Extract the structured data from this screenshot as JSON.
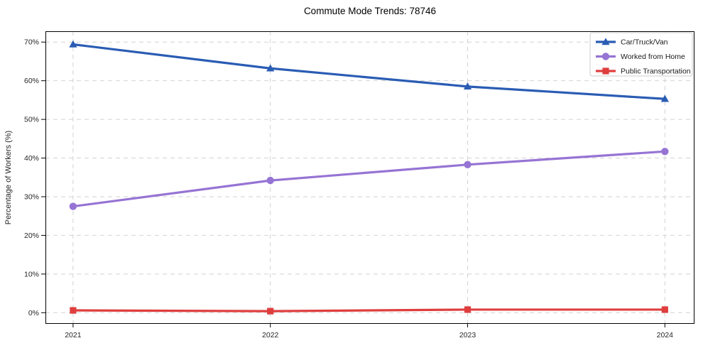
{
  "title": "Commute Mode Trends: 78746",
  "colors": {
    "car_truck_van": "#2a5cb4",
    "worked_from_home": "#9674d4",
    "public_transportation": "#df3e3e",
    "grid": "#d2d2d2",
    "spine": "#000000",
    "legend_border": "#cccccc",
    "background": "#ffffff"
  },
  "chart_data": {
    "type": "line",
    "title": "Commute Mode Trends: 78746",
    "xlabel": "",
    "ylabel": "Percentage of Workers (%)",
    "x": [
      2021,
      2022,
      2023,
      2024
    ],
    "x_tick_labels": [
      "2021",
      "2022",
      "2023",
      "2024"
    ],
    "y_ticks": [
      0,
      10,
      20,
      30,
      40,
      50,
      60,
      70
    ],
    "y_tick_labels": [
      "0%",
      "10%",
      "20%",
      "30%",
      "40%",
      "50%",
      "60%",
      "70%"
    ],
    "xlim": [
      2020.86,
      2024.15
    ],
    "ylim": [
      -2.7,
      72.8
    ],
    "grid": true,
    "grid_style": "dashed",
    "legend_position": "upper right",
    "series": [
      {
        "name": "Car/Truck/Van",
        "marker": "triangle",
        "color": "#2a5cb4",
        "values": [
          69.4,
          63.2,
          58.5,
          55.3
        ]
      },
      {
        "name": "Worked from Home",
        "marker": "circle",
        "color": "#9674d4",
        "values": [
          27.5,
          34.2,
          38.3,
          41.7
        ]
      },
      {
        "name": "Public Transportation",
        "marker": "square",
        "color": "#df3e3e",
        "values": [
          0.6,
          0.4,
          0.8,
          0.8
        ]
      }
    ]
  }
}
